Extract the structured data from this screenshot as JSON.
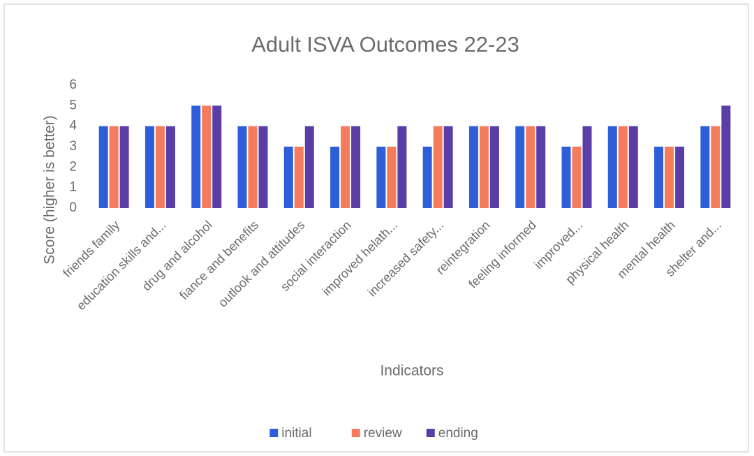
{
  "chart_data": {
    "type": "bar",
    "title": "Adult ISVA Outcomes 22-23",
    "x_label": "Indicators",
    "y_label": "Score (higher is better)",
    "categories": [
      "friends family",
      "education skills and...",
      "drug and alcohol",
      "fiance and benefits",
      "outlook and attitudes",
      "social interaction",
      "improved helath...",
      "increased safety...",
      "reintegration",
      "feeling informed",
      "improved...",
      "physical health",
      "mental health",
      "shelter and..."
    ],
    "series": [
      {
        "name": "initial",
        "color": "#2f5fd8",
        "values": [
          4,
          4,
          5,
          4,
          3,
          3,
          3,
          3,
          4,
          4,
          3,
          4,
          3,
          4
        ]
      },
      {
        "name": "review",
        "color": "#f47b5c",
        "values": [
          4,
          4,
          5,
          4,
          3,
          4,
          3,
          4,
          4,
          4,
          3,
          4,
          3,
          4
        ]
      },
      {
        "name": "ending",
        "color": "#5a3ea8",
        "values": [
          4,
          4,
          5,
          4,
          4,
          4,
          4,
          4,
          4,
          4,
          4,
          4,
          3,
          5
        ]
      }
    ],
    "ylim": [
      0,
      6
    ],
    "yticks": [
      0,
      1,
      2,
      3,
      4,
      5,
      6
    ],
    "grid": false,
    "legend": "bottom"
  }
}
